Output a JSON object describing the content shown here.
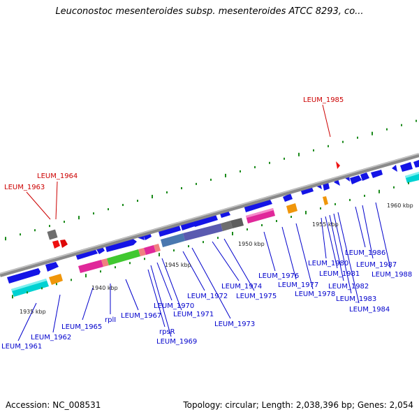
{
  "title": "Leuconostoc mesenteroides subsp. mesenteroides ATCC 8293, co...",
  "footer": {
    "accession": "Accession: NC_008531",
    "summary": "Topology: circular; Length: 2,038,396 bp; Genes: 2,054"
  },
  "colors": {
    "backbone": "#8a8a8a",
    "cds": "#1010e8",
    "pseudo": "#ee1010",
    "trna": "#00d5d5",
    "rrna_orange": "#f0960a",
    "ribosomal_magenta": "#e0289a",
    "ribosomal_pink": "#f08080",
    "ribosomal_green": "#40c830",
    "block_steelblue": "#4a78b0",
    "block_slate": "#5a5ab0",
    "block_gray": "#6e6e6e",
    "tick_green": "#1a8a1a",
    "label_blue": "#0000cc",
    "label_red": "#cc0000"
  },
  "scale_labels": [
    "1935 kbp",
    "1940 kbp",
    "1945 kbp",
    "1950 kbp",
    "1955 kbp",
    "1960 kbp"
  ],
  "gene_labels": {
    "blue": [
      "LEUM_1961",
      "LEUM_1962",
      "LEUM_1965",
      "rplI",
      "LEUM_1967",
      "rpsR",
      "LEUM_1969",
      "LEUM_1970",
      "LEUM_1971",
      "LEUM_1972",
      "LEUM_1973",
      "LEUM_1974",
      "LEUM_1975",
      "LEUM_1976",
      "LEUM_1977",
      "LEUM_1978",
      "LEUM_1980",
      "LEUM_1981",
      "LEUM_1982",
      "LEUM_1983",
      "LEUM_1984",
      "LEUM_1986",
      "LEUM_1987",
      "LEUM_1988"
    ],
    "red": [
      "LEUM_1963",
      "LEUM_1964",
      "LEUM_1985"
    ]
  }
}
